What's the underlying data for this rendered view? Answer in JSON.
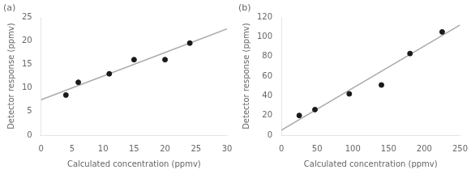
{
  "chart_data": [
    {
      "type": "scatter",
      "title": "(a)",
      "xlabel": "Calculated concentration (ppmv)",
      "ylabel": "Detector response (ppmv)",
      "series": [
        {
          "type": "scatter",
          "color": "#1a1a1a",
          "marker": "o",
          "x": [
            4,
            6,
            11,
            15,
            20,
            24
          ],
          "values": [
            8.5,
            11.2,
            13.0,
            16.0,
            16.0,
            19.5
          ]
        },
        {
          "type": "line",
          "color": "#aaaaaa",
          "line_style": "solid",
          "x": [
            0,
            30
          ],
          "values": [
            7.5,
            22.5
          ]
        }
      ],
      "xlim": [
        0,
        30
      ],
      "ylim": [
        0,
        25
      ],
      "xticks": [
        0,
        5,
        10,
        15,
        20,
        25,
        30
      ],
      "yticks": [
        0,
        5,
        10,
        15,
        20,
        25
      ],
      "grid": false
    },
    {
      "type": "scatter",
      "title": "(b)",
      "xlabel": "Calculated concentration (ppmv)",
      "ylabel": "Detector response (ppmv)",
      "series": [
        {
          "type": "scatter",
          "color": "#1a1a1a",
          "marker": "o",
          "x": [
            25,
            47,
            95,
            140,
            180,
            225
          ],
          "values": [
            20,
            26,
            42,
            51,
            83,
            105
          ]
        },
        {
          "type": "line",
          "color": "#aaaaaa",
          "line_style": "solid",
          "x": [
            0,
            250
          ],
          "values": [
            5,
            112
          ]
        }
      ],
      "xlim": [
        0,
        250
      ],
      "ylim": [
        0,
        120
      ],
      "xticks": [
        0,
        50,
        100,
        150,
        200,
        250
      ],
      "yticks": [
        0,
        20,
        40,
        60,
        80,
        100,
        120
      ],
      "grid": false
    }
  ]
}
